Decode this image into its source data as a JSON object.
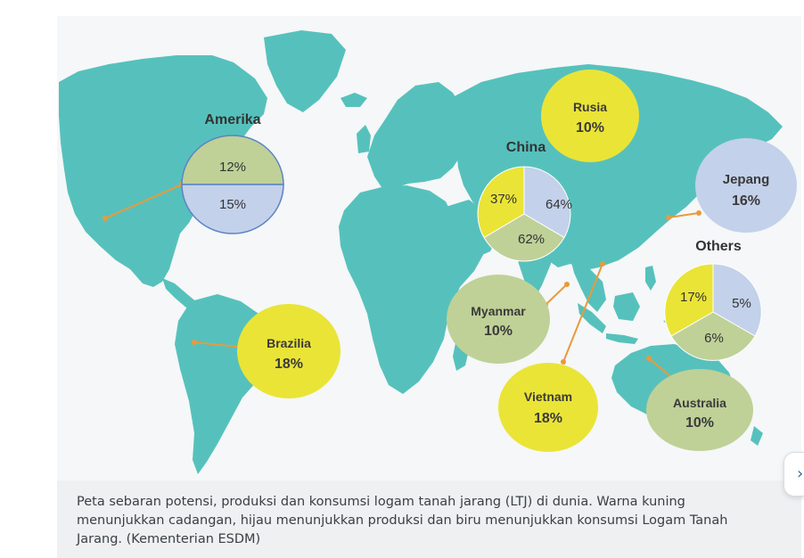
{
  "colors": {
    "land": "#56c1bc",
    "background": "#f5f7f8",
    "yellow": "#eae437",
    "green": "#bfd197",
    "blue": "#c3d1ea",
    "leader": "#e89a3d"
  },
  "regions": {
    "amerika": {
      "name": "Amerika",
      "green_value": "12%",
      "blue_value": "15%"
    },
    "china": {
      "name": "China",
      "yellow_value": "37%",
      "blue_value": "64%",
      "green_value": "62%"
    },
    "others": {
      "name": "Others",
      "yellow_value": "17%",
      "blue_value": "5%",
      "green_value": "6%"
    },
    "rusia": {
      "name": "Rusia",
      "value": "10%"
    },
    "jepang": {
      "name": "Jepang",
      "value": "16%"
    },
    "brazilia": {
      "name": "Brazilia",
      "value": "18%"
    },
    "myanmar": {
      "name": "Myanmar",
      "value": "10%"
    },
    "vietnam": {
      "name": "Vietnam",
      "value": "18%"
    },
    "australia": {
      "name": "Australia",
      "value": "10%"
    }
  },
  "caption": "Peta sebaran potensi, produksi dan konsumsi logam tanah jarang (LTJ) di dunia. Warna kuning menunjukkan cadangan, hijau menunjukkan produksi dan biru menunjukkan konsumsi Logam Tanah Jarang. (Kementerian ESDM)",
  "next_icon": "›"
}
